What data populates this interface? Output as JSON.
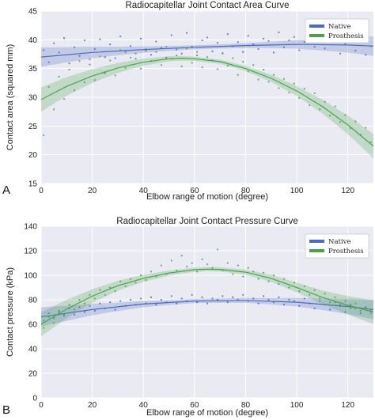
{
  "chart_data": [
    {
      "panel": "A",
      "type": "scatter",
      "title": "Radiocapitellar Joint Contact Area Curve",
      "xlabel": "Elbow range of motion (degree)",
      "ylabel": "Contact area (squared mm)",
      "xlim": [
        0,
        130
      ],
      "ylim": [
        15,
        45
      ],
      "xticks": [
        0,
        20,
        40,
        60,
        80,
        100,
        120
      ],
      "yticks": [
        15,
        20,
        25,
        30,
        35,
        40,
        45
      ],
      "grid": true,
      "legend": "top-right",
      "series": [
        {
          "name": "Native",
          "color": "#4c6bbf",
          "fit": {
            "x": [
              0,
              20,
              40,
              60,
              80,
              100,
              120,
              130
            ],
            "y": [
              37.0,
              37.8,
              38.3,
              38.7,
              39.0,
              39.2,
              39.1,
              38.9
            ]
          },
          "points": {
            "x": [
              1,
              3,
              5,
              7,
              9,
              11,
              13,
              15,
              17,
              19,
              21,
              23,
              25,
              27,
              29,
              31,
              33,
              35,
              37,
              39,
              41,
              43,
              45,
              47,
              49,
              51,
              53,
              55,
              57,
              59,
              61,
              63,
              65,
              67,
              69,
              71,
              73,
              75,
              77,
              79,
              81,
              83,
              85,
              87,
              89,
              91,
              93,
              95,
              97,
              99,
              101,
              103,
              105,
              107,
              109,
              111,
              113,
              115,
              117,
              119,
              121,
              123,
              125,
              127,
              129
            ],
            "y": [
              38.2,
              36.1,
              39.4,
              37.8,
              40.3,
              35.9,
              38.7,
              37.2,
              39.9,
              36.6,
              38.4,
              40.1,
              37.0,
              39.2,
              36.8,
              40.6,
              37.9,
              38.9,
              36.7,
              40.2,
              38.1,
              37.4,
              39.7,
              38.6,
              36.9,
              40.8,
              38.3,
              37.6,
              41.2,
              38.8,
              37.3,
              39.9,
              40.4,
              38.0,
              39.5,
              37.7,
              41.0,
              38.9,
              39.6,
              37.9,
              40.7,
              39.2,
              38.4,
              40.2,
              39.8,
              37.8,
              41.3,
              38.7,
              39.9,
              40.5,
              38.2,
              39.6,
              41.1,
              38.8,
              40.0,
              38.5,
              39.7,
              40.9,
              37.6,
              39.3,
              40.4,
              38.1,
              39.8,
              37.4,
              38.9
            ]
          }
        },
        {
          "name": "Prosthesis",
          "color": "#4ca24c",
          "fit": {
            "x": [
              0,
              10,
              20,
              30,
              40,
              50,
              55,
              60,
              70,
              80,
              90,
              100,
              110,
              120,
              130
            ],
            "y": [
              29.6,
              31.9,
              33.7,
              35.1,
              36.1,
              36.7,
              36.8,
              36.7,
              36.2,
              35.0,
              33.3,
              31.1,
              28.4,
              25.2,
              21.5
            ]
          },
          "points": {
            "x": [
              1,
              3,
              5,
              7,
              9,
              11,
              13,
              15,
              17,
              19,
              21,
              23,
              25,
              27,
              29,
              31,
              33,
              35,
              37,
              39,
              41,
              43,
              45,
              47,
              49,
              51,
              53,
              55,
              57,
              59,
              61,
              63,
              65,
              67,
              69,
              71,
              73,
              75,
              77,
              79,
              81,
              83,
              85,
              87,
              89,
              91,
              93,
              95,
              97,
              99,
              101,
              103,
              105,
              107,
              109,
              111,
              113,
              115,
              117,
              119,
              121,
              123,
              125,
              127,
              129
            ],
            "y": [
              23.4,
              31.8,
              27.9,
              33.6,
              29.7,
              34.8,
              31.2,
              36.3,
              32.6,
              35.7,
              33.0,
              37.1,
              34.2,
              36.4,
              33.8,
              38.2,
              35.1,
              36.9,
              37.6,
              35.0,
              38.4,
              36.3,
              37.9,
              35.6,
              38.8,
              36.7,
              37.3,
              35.4,
              38.5,
              36.0,
              37.9,
              35.2,
              37.0,
              36.4,
              34.9,
              37.6,
              35.5,
              36.8,
              33.9,
              36.2,
              34.5,
              35.6,
              33.1,
              34.8,
              32.7,
              33.9,
              31.6,
              33.2,
              30.8,
              32.4,
              29.9,
              31.5,
              28.6,
              30.7,
              27.9,
              29.2,
              26.8,
              28.4,
              25.7,
              26.9,
              24.6,
              25.8,
              23.5,
              24.7,
              22.2
            ]
          }
        }
      ]
    },
    {
      "panel": "B",
      "type": "scatter",
      "title": "Radiocapitellar Joint Contact Pressure Curve",
      "xlabel": "Elbow range of motion (degree)",
      "ylabel": "Contact pressure (kPa)",
      "xlim": [
        0,
        130
      ],
      "ylim": [
        0,
        140
      ],
      "xticks": [
        0,
        20,
        40,
        60,
        80,
        100,
        120
      ],
      "yticks": [
        0,
        20,
        40,
        60,
        80,
        100,
        120,
        140
      ],
      "grid": true,
      "legend": "top-right",
      "series": [
        {
          "name": "Native",
          "color": "#4c6bbf",
          "fit": {
            "x": [
              0,
              20,
              40,
              60,
              80,
              100,
              120,
              130
            ],
            "y": [
              66.0,
              72.0,
              76.5,
              79.0,
              79.5,
              78.0,
              74.5,
              72.0
            ]
          },
          "points": {
            "x": [
              1,
              3,
              5,
              7,
              9,
              11,
              13,
              15,
              17,
              19,
              21,
              23,
              25,
              27,
              29,
              31,
              33,
              35,
              37,
              39,
              41,
              43,
              45,
              47,
              49,
              51,
              53,
              55,
              57,
              59,
              61,
              63,
              65,
              67,
              69,
              71,
              73,
              75,
              77,
              79,
              81,
              83,
              85,
              87,
              89,
              91,
              93,
              95,
              97,
              99,
              101,
              103,
              105,
              107,
              109,
              111,
              113,
              115,
              117,
              119,
              121,
              123,
              125,
              127,
              129
            ],
            "y": [
              63,
              69,
              65,
              71,
              67,
              73,
              68,
              74,
              70,
              75,
              71,
              77,
              73,
              78,
              72,
              79,
              75,
              80,
              76,
              81,
              77,
              82,
              76,
              80,
              78,
              83,
              77,
              81,
              79,
              84,
              78,
              82,
              77,
              81,
              80,
              83,
              78,
              82,
              80,
              84,
              79,
              81,
              77,
              83,
              80,
              78,
              82,
              76,
              80,
              79,
              75,
              81,
              77,
              73,
              79,
              76,
              72,
              78,
              75,
              70,
              76,
              73,
              69,
              74,
              71
            ]
          }
        },
        {
          "name": "Prosthesis",
          "color": "#4ca24c",
          "fit": {
            "x": [
              0,
              10,
              20,
              30,
              40,
              50,
              60,
              65,
              70,
              80,
              90,
              100,
              110,
              120,
              130
            ],
            "y": [
              60.0,
              72.5,
              83.0,
              91.5,
              97.5,
              101.8,
              104.5,
              105.0,
              104.8,
              102.5,
              97.5,
              90.0,
              82.0,
              75.5,
              70.0
            ]
          },
          "points": {
            "x": [
              1,
              3,
              5,
              7,
              9,
              11,
              13,
              15,
              17,
              19,
              21,
              23,
              25,
              27,
              29,
              31,
              33,
              35,
              37,
              39,
              41,
              43,
              45,
              47,
              49,
              51,
              53,
              55,
              57,
              59,
              61,
              63,
              65,
              67,
              69,
              71,
              73,
              75,
              77,
              79,
              81,
              83,
              85,
              87,
              89,
              91,
              93,
              95,
              97,
              99,
              101,
              103,
              105,
              107,
              109,
              111,
              113,
              115,
              117,
              119,
              121,
              123,
              125,
              127,
              129
            ],
            "y": [
              57,
              66,
              61,
              70,
              68,
              76,
              72,
              80,
              77,
              84,
              81,
              88,
              84,
              90,
              87,
              95,
              91,
              97,
              94,
              100,
              96,
              103,
              99,
              108,
              101,
              112,
              104,
              116,
              107,
              110,
              103,
              113,
              109,
              106,
              121,
              104,
              110,
              101,
              108,
              99,
              106,
              103,
              97,
              102,
              95,
              100,
              93,
              97,
              90,
              94,
              87,
              91,
              84,
              88,
              81,
              85,
              78,
              82,
              76,
              79,
              73,
              77,
              71,
              74,
              69
            ]
          }
        }
      ]
    }
  ]
}
